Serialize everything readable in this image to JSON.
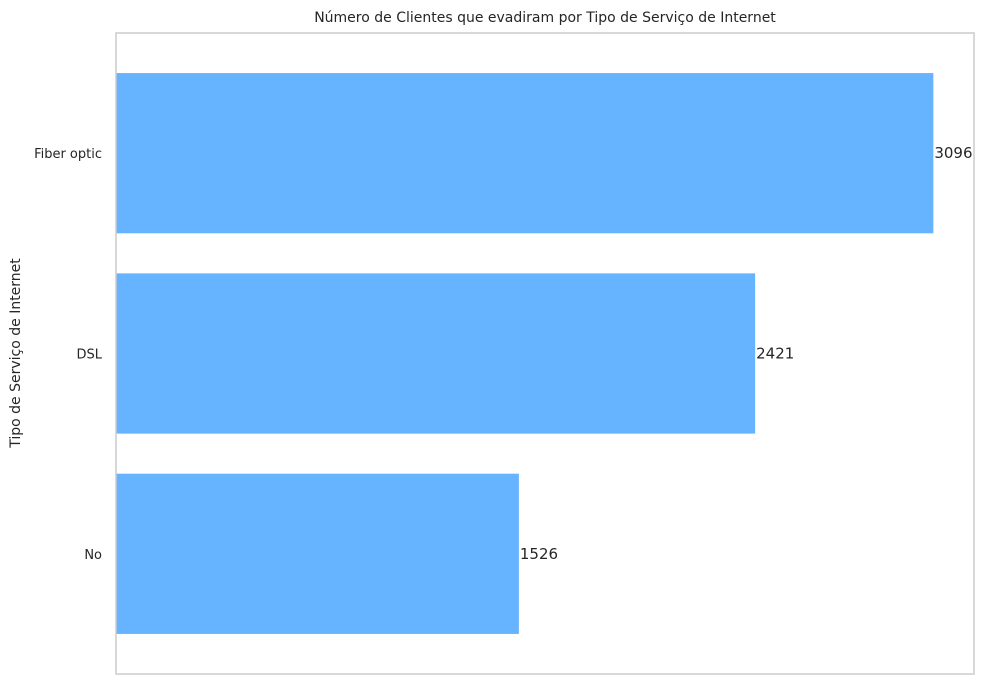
{
  "chart_data": {
    "type": "bar",
    "orientation": "horizontal",
    "title": "Número de Clientes que evadiram por Tipo de Serviço de Internet",
    "xlabel": "",
    "ylabel": "Tipo de Serviço de Internet",
    "categories": [
      "Fiber optic",
      "DSL",
      "No"
    ],
    "values": [
      3096,
      2421,
      1526
    ],
    "data_labels": [
      "3096",
      "2421",
      "1526"
    ],
    "xlim": [
      0,
      3250
    ],
    "grid": false,
    "legend": "none",
    "bar_color": "#66b3ff",
    "frame_color": "#cccccc"
  }
}
